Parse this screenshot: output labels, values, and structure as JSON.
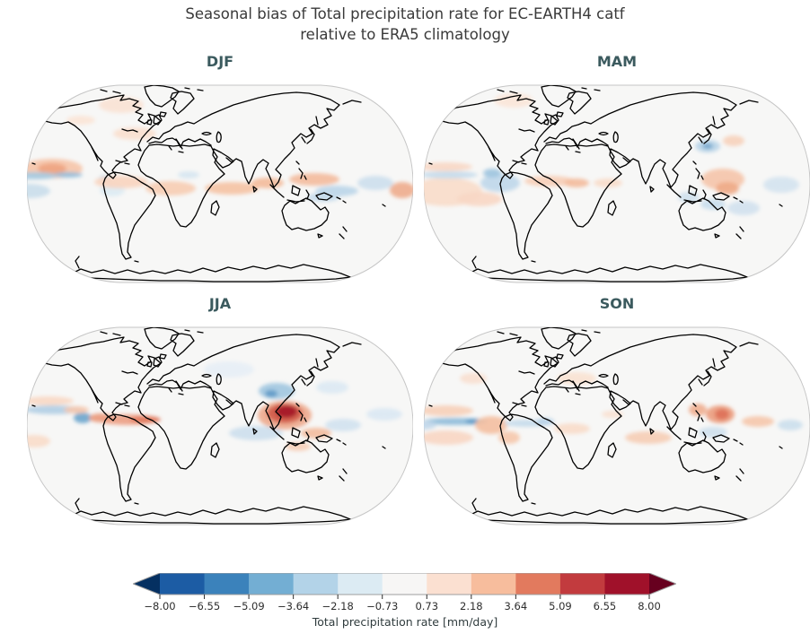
{
  "figure": {
    "title_line1": "Seasonal bias of Total precipitation rate for EC-EARTH4 catf",
    "title_line2": "relative to ERA5 climatology",
    "title_color": "#3a3a3a",
    "panel_title_color": "#3b5a5e",
    "map_background": "#f7f7f6",
    "map_border_color": "#c6c6c6",
    "coastline_color": "#000000"
  },
  "chart_data": {
    "type": "heatmap",
    "subtype": "global map grid of seasonal precipitation bias, Robinson projection, 2x2 panels",
    "title": "Seasonal bias of Total precipitation rate for EC-EARTH4 catf relative to ERA5 climatology",
    "variable": "Total precipitation rate bias",
    "units": "mm/day",
    "legend_position": "bottom horizontal colorbar with extend arrows both ends",
    "panels": [
      {
        "label": "DJF",
        "summary": "Wet bias (red) in east Pacific ITCZ, tropical Atlantic, Indian Ocean and west Pacific; dry bias (blue) along equatorial Pacific and SW Pacific.",
        "shade_regions": [
          [
            28,
            96,
            34,
            11,
            "#f6c6aa"
          ],
          [
            28,
            96,
            16,
            6,
            "#efa582"
          ],
          [
            8,
            104,
            26,
            4,
            "#a6cbe2"
          ],
          [
            46,
            103,
            16,
            3,
            "#93bedb"
          ],
          [
            2,
            121,
            24,
            8,
            "#cadeeb"
          ],
          [
            95,
            120,
            14,
            7,
            "#dcebf3"
          ],
          [
            88,
            107,
            8,
            4,
            "#c8dcec"
          ],
          [
            105,
            111,
            30,
            7,
            "#f8d5c0"
          ],
          [
            160,
            118,
            28,
            8,
            "#f7cdb4"
          ],
          [
            228,
            118,
            30,
            7,
            "#f5c3a5"
          ],
          [
            268,
            112,
            18,
            6,
            "#f3bc9c"
          ],
          [
            320,
            108,
            28,
            7,
            "#f3bc9e"
          ],
          [
            345,
            121,
            24,
            6,
            "#bcd6e9"
          ],
          [
            330,
            128,
            18,
            5,
            "#c6dbeb"
          ],
          [
            388,
            112,
            20,
            8,
            "#cde0ee"
          ],
          [
            418,
            120,
            14,
            9,
            "#efae8e"
          ],
          [
            120,
            57,
            24,
            7,
            "#fae0cf"
          ],
          [
            60,
            42,
            16,
            5,
            "#fbe5d7"
          ],
          [
            105,
            25,
            25,
            9,
            "#fae3d5"
          ],
          [
            180,
            103,
            12,
            4,
            "#d7e6f1"
          ]
        ]
      },
      {
        "label": "MAM",
        "summary": "Faint wet bias over SE Pacific and equatorial Atlantic; dry bias over Amazon and around Maritime Continent; wet patch over Indonesia; blue spot over east China.",
        "shade_regions": [
          [
            25,
            122,
            40,
            16,
            "#f9dcca"
          ],
          [
            28,
            103,
            32,
            4,
            "#c5dbec"
          ],
          [
            24,
            94,
            30,
            5,
            "#f8d8c5"
          ],
          [
            85,
            112,
            22,
            10,
            "#c0d8ea"
          ],
          [
            76,
            101,
            10,
            5,
            "#a0c6e0"
          ],
          [
            140,
            110,
            28,
            6,
            "#f7cfb8"
          ],
          [
            170,
            112,
            14,
            5,
            "#f3bd9e"
          ],
          [
            316,
            71,
            14,
            7,
            "#bad5e8"
          ],
          [
            316,
            71,
            6,
            3,
            "#6fa3cb"
          ],
          [
            333,
            108,
            24,
            12,
            "#f5c6ab"
          ],
          [
            338,
            118,
            13,
            7,
            "#efab89"
          ],
          [
            295,
            128,
            12,
            6,
            "#cfe1ee"
          ],
          [
            322,
            136,
            14,
            6,
            "#c9dded"
          ],
          [
            356,
            140,
            18,
            8,
            "#d2e2ef"
          ],
          [
            398,
            114,
            20,
            9,
            "#d5e4f0"
          ],
          [
            345,
            65,
            12,
            6,
            "#f7d2bd"
          ],
          [
            205,
            112,
            16,
            5,
            "#f9dcca"
          ],
          [
            100,
            20,
            22,
            8,
            "#fbe6d9"
          ],
          [
            62,
            130,
            25,
            8,
            "#f8d8c6"
          ]
        ]
      },
      {
        "label": "JJA",
        "summary": "Strong wet bias (dark red) over Bay of Bengal / Southeast Asia with dry bias over Himalaya; red band across equatorial Atlantic; blue band in NE Pacific.",
        "shade_regions": [
          [
            30,
            95,
            32,
            5,
            "#b2cfe5"
          ],
          [
            24,
            85,
            28,
            5,
            "#f8d9c6"
          ],
          [
            62,
            104,
            10,
            6,
            "#6fa7ce"
          ],
          [
            82,
            104,
            13,
            5,
            "#ea9a7c"
          ],
          [
            112,
            106,
            34,
            6,
            "#eda185"
          ],
          [
            132,
            106,
            17,
            4,
            "#e27a5e"
          ],
          [
            287,
            101,
            30,
            16,
            "#eeab8f"
          ],
          [
            287,
            99,
            20,
            11,
            "#d25c4a"
          ],
          [
            289,
            97,
            12,
            7,
            "#a41529"
          ],
          [
            278,
            74,
            20,
            9,
            "#a2c8e1"
          ],
          [
            272,
            77,
            7,
            4,
            "#5f9ac8"
          ],
          [
            255,
            121,
            30,
            8,
            "#cde0ee"
          ],
          [
            322,
            121,
            17,
            6,
            "#f3bd9f"
          ],
          [
            352,
            112,
            20,
            7,
            "#d3e3f0"
          ],
          [
            8,
            130,
            18,
            7,
            "#f9dcca"
          ],
          [
            225,
            50,
            28,
            9,
            "#e7eff6"
          ],
          [
            398,
            100,
            20,
            7,
            "#dbe8f3"
          ],
          [
            302,
            136,
            14,
            5,
            "#f7cfb9"
          ],
          [
            55,
            95,
            14,
            4,
            "#f5c8ae"
          ],
          [
            340,
            70,
            18,
            7,
            "#dce9f3"
          ]
        ]
      },
      {
        "label": "SON",
        "summary": "Dry bias (blue band) along equatorial Pacific, strongest near South American coast; wet bias flanking it and over west Pacific / SE Asia.",
        "shade_regions": [
          [
            35,
            108,
            36,
            4,
            "#90bdda"
          ],
          [
            58,
            108,
            12,
            3,
            "#6099c7"
          ],
          [
            25,
            96,
            30,
            6,
            "#f7d0ba"
          ],
          [
            25,
            126,
            30,
            8,
            "#f8d7c4"
          ],
          [
            0,
            112,
            14,
            5,
            "#c2d8ea"
          ],
          [
            75,
            112,
            18,
            10,
            "#f4c0a2"
          ],
          [
            95,
            126,
            12,
            7,
            "#f6c9ae"
          ],
          [
            115,
            110,
            26,
            4,
            "#c6dbeb"
          ],
          [
            165,
            116,
            20,
            6,
            "#f9dcca"
          ],
          [
            250,
            126,
            26,
            7,
            "#f6ceb6"
          ],
          [
            305,
            95,
            10,
            7,
            "#f0b092"
          ],
          [
            330,
            100,
            16,
            10,
            "#eb9e80"
          ],
          [
            332,
            100,
            8,
            6,
            "#de7259"
          ],
          [
            322,
            120,
            16,
            6,
            "#cfe1ee"
          ],
          [
            372,
            108,
            18,
            6,
            "#f5c8ac"
          ],
          [
            408,
            112,
            14,
            6,
            "#cce0ed"
          ],
          [
            170,
            60,
            22,
            7,
            "#fae3d3"
          ],
          [
            55,
            60,
            15,
            6,
            "#f9dfd0"
          ],
          [
            210,
            100,
            12,
            4,
            "#fae2d2"
          ],
          [
            135,
            108,
            10,
            4,
            "#b9d3e7"
          ]
        ]
      }
    ],
    "colorbar": {
      "label": "Total precipitation rate [mm/day]",
      "range": [
        -8.0,
        8.0
      ],
      "tick_values": [
        -8.0,
        -6.55,
        -5.09,
        -3.64,
        -2.18,
        -0.73,
        0.73,
        2.18,
        3.64,
        5.09,
        6.55,
        8.0
      ],
      "tick_labels": [
        "−8.00",
        "−6.55",
        "−5.09",
        "−3.64",
        "−2.18",
        "−0.73",
        "0.73",
        "2.18",
        "3.64",
        "5.09",
        "6.55",
        "8.00"
      ],
      "segment_colors": [
        "#1c5ca4",
        "#3b82bb",
        "#73aed3",
        "#b3d3e8",
        "#dcebf3",
        "#f7f6f5",
        "#fbe0d1",
        "#f7bd9d",
        "#e27a5e",
        "#c23b3e",
        "#a0112a"
      ],
      "under_color": "#053061",
      "over_color": "#67001f",
      "outline_color": "#9e9e9e",
      "tick_color": "#2d2d2d",
      "colormap": "RdBu_r"
    }
  }
}
